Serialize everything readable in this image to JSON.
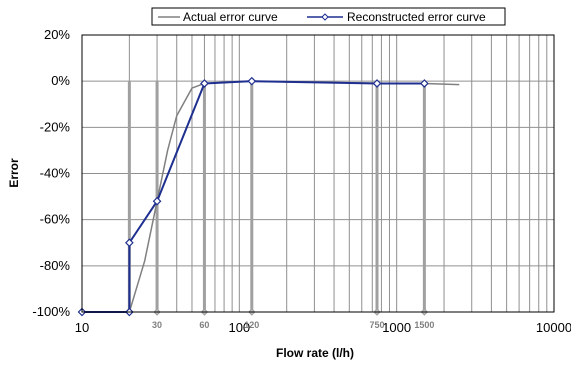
{
  "chart_data": {
    "type": "line",
    "xlabel": "Flow rate (l/h)",
    "ylabel": "Error",
    "x_scale": "log",
    "xlim": [
      10,
      10000
    ],
    "ylim": [
      -100,
      20
    ],
    "y_unit": "%",
    "x_ticks": [
      10,
      100,
      1000,
      10000
    ],
    "y_ticks": [
      -100,
      -80,
      -60,
      -40,
      -20,
      0,
      20
    ],
    "grid": true,
    "legend_position": "top",
    "series": [
      {
        "name": "Actual error curve",
        "color": "#808080",
        "marker": "none",
        "x": [
          10,
          20,
          25,
          30,
          35,
          40,
          50,
          60,
          80,
          120,
          200,
          400,
          800,
          1500,
          2500
        ],
        "y": [
          -100,
          -100,
          -78,
          -52,
          -30,
          -15,
          -3,
          -1,
          -0.5,
          0,
          -0.3,
          -0.6,
          -0.9,
          -1,
          -1.5
        ]
      },
      {
        "name": "Reconstructed error curve",
        "color": "#1f2f8f",
        "marker": "diamond",
        "x": [
          10,
          20,
          20,
          30,
          60,
          120,
          750,
          1500
        ],
        "y": [
          -100,
          -100,
          -70,
          -52,
          -1,
          0,
          -1,
          -1
        ]
      }
    ],
    "marker_lines": [
      {
        "x": 20,
        "label": ""
      },
      {
        "x": 30,
        "label": "30"
      },
      {
        "x": 60,
        "label": "60"
      },
      {
        "x": 120,
        "label": "120"
      },
      {
        "x": 750,
        "label": "750"
      },
      {
        "x": 1500,
        "label": "1500"
      }
    ]
  }
}
